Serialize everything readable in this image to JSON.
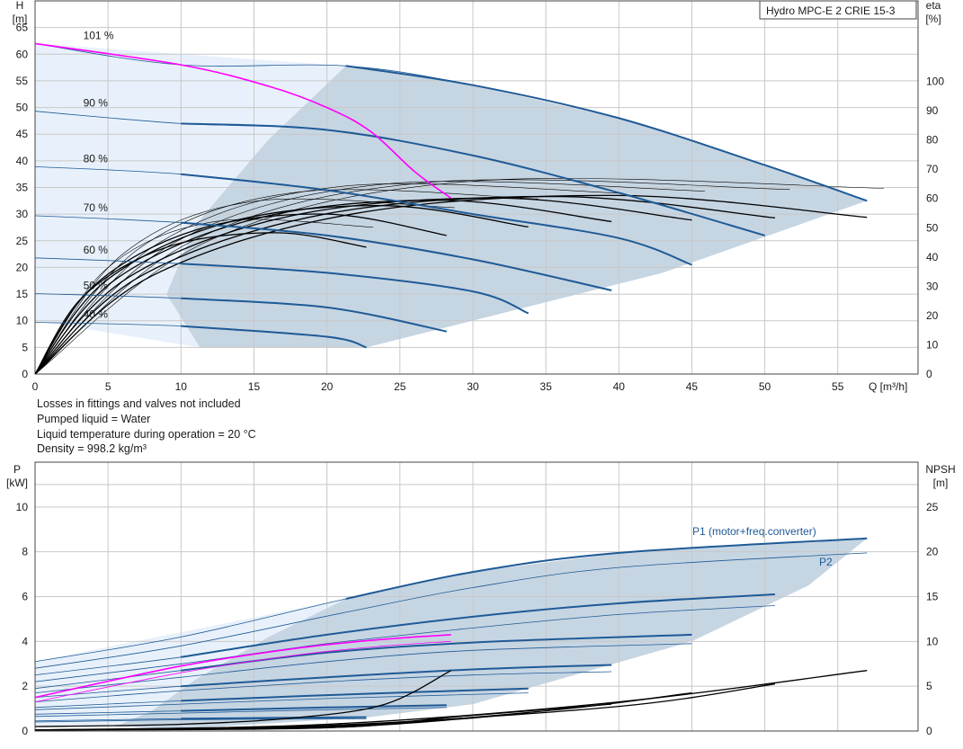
{
  "title": "Hydro MPC-E 2 CRIE 15-3",
  "notes": [
    "Losses in fittings and valves not included",
    "Pumped liquid = Water",
    "Liquid temperature during operation = 20 °C",
    "Density = 998.2 kg/m³"
  ],
  "colors": {
    "envelope_fill": "#c6d5e2",
    "light_zone_fill": "#e8f1fb",
    "curve_blue": "#1f5a96",
    "system_curve": "#ff00ff",
    "efficiency_curve": "#000000",
    "grid": "#c8c8c8"
  },
  "chart_data": [
    {
      "type": "line",
      "xlabel": "Q [m³/h]",
      "ylabel_top": "H",
      "ylabel_unit": "[m]",
      "y2label_top": "eta",
      "y2label_unit": "[%]",
      "xlim": [
        0,
        60.5
      ],
      "ylim": [
        0,
        70
      ],
      "y2lim": [
        0,
        127.5
      ],
      "xticks": [
        0,
        5,
        10,
        15,
        20,
        25,
        30,
        35,
        40,
        45,
        50,
        55
      ],
      "yticks": [
        0,
        5,
        10,
        15,
        20,
        25,
        30,
        35,
        40,
        45,
        50,
        55,
        60,
        65
      ],
      "y2ticks": [
        0,
        10,
        20,
        30,
        40,
        50,
        60,
        70,
        80,
        90,
        100
      ],
      "grid": true,
      "envelope": {
        "upper": [
          [
            21.3,
            57.8
          ],
          [
            30,
            54.2
          ],
          [
            40,
            48
          ],
          [
            50,
            39.2
          ],
          [
            57,
            32.5
          ]
        ],
        "right": [
          [
            57,
            32.5
          ],
          [
            43,
            19
          ],
          [
            22.7,
            5
          ]
        ],
        "left_boundary": [
          [
            21.3,
            57.8
          ],
          [
            16,
            44
          ],
          [
            11,
            28
          ],
          [
            9,
            15
          ],
          [
            11.3,
            5
          ]
        ],
        "bottom": [
          [
            11.3,
            5
          ],
          [
            22.7,
            5
          ]
        ]
      },
      "light_zone": [
        [
          0,
          62
        ],
        [
          21.3,
          57.8
        ],
        [
          16,
          44
        ],
        [
          11,
          28
        ],
        [
          9,
          15
        ],
        [
          11.3,
          5
        ],
        [
          0,
          10
        ]
      ],
      "speed_curves": [
        {
          "name": "101 %",
          "points": [
            [
              0,
              62
            ],
            [
              10,
              58
            ],
            [
              21.3,
              57.8
            ],
            [
              30,
              54.2
            ],
            [
              40,
              48
            ],
            [
              50,
              39.2
            ],
            [
              57,
              32.5
            ]
          ]
        },
        {
          "name": "90 %",
          "points": [
            [
              0,
              49.3
            ],
            [
              10,
              47
            ],
            [
              20,
              45.8
            ],
            [
              30,
              41
            ],
            [
              40,
              34
            ],
            [
              50,
              26
            ]
          ]
        },
        {
          "name": "80 %",
          "points": [
            [
              0,
              38.9
            ],
            [
              10,
              37.5
            ],
            [
              20,
              34.5
            ],
            [
              30,
              30
            ],
            [
              40,
              25.5
            ],
            [
              45,
              20.5
            ]
          ]
        },
        {
          "name": "70 %",
          "points": [
            [
              0,
              29.7
            ],
            [
              10,
              28.4
            ],
            [
              20,
              26
            ],
            [
              30,
              21.5
            ],
            [
              39.5,
              15.7
            ]
          ]
        },
        {
          "name": "60 %",
          "points": [
            [
              0,
              21.8
            ],
            [
              10,
              20.7
            ],
            [
              20,
              19
            ],
            [
              30,
              15.5
            ],
            [
              33.8,
              11.4
            ]
          ]
        },
        {
          "name": "50 %",
          "points": [
            [
              0,
              15.1
            ],
            [
              10,
              14.2
            ],
            [
              20,
              12.5
            ],
            [
              28.2,
              8
            ]
          ]
        },
        {
          "name": "40 %",
          "points": [
            [
              0,
              9.7
            ],
            [
              10,
              9
            ],
            [
              20,
              7
            ],
            [
              22.7,
              5
            ]
          ]
        }
      ],
      "system_curve": [
        [
          0,
          62
        ],
        [
          10,
          58
        ],
        [
          16,
          54
        ],
        [
          20,
          50
        ],
        [
          23,
          45.5
        ],
        [
          26,
          38
        ],
        [
          28.5,
          33
        ]
      ],
      "efficiency_curves": [
        {
          "end": [
            22.7,
            23.8
          ],
          "peak": [
            16.5,
            26.5
          ]
        },
        {
          "end": [
            28.2,
            26
          ],
          "peak": [
            20,
            30
          ]
        },
        {
          "end": [
            33.8,
            27.6
          ],
          "peak": [
            24,
            31.6
          ]
        },
        {
          "end": [
            39.5,
            28.6
          ],
          "peak": [
            28,
            32.6
          ]
        },
        {
          "end": [
            45,
            28.9
          ],
          "peak": [
            32,
            33
          ]
        },
        {
          "end": [
            50.7,
            29.3
          ],
          "peak": [
            36,
            33.3
          ]
        },
        {
          "end": [
            57,
            29.4
          ],
          "peak": [
            40,
            33.5
          ]
        }
      ]
    },
    {
      "type": "line",
      "ylabel_top": "P",
      "ylabel_unit": "[kW]",
      "y2label_top": "NPSH",
      "y2label_unit": "[m]",
      "xlim": [
        0,
        60.5
      ],
      "ylim": [
        0,
        12
      ],
      "y2lim": [
        0,
        30
      ],
      "yticks": [
        0,
        2,
        4,
        6,
        8,
        10
      ],
      "y2ticks": [
        0,
        5,
        10,
        15,
        20,
        25
      ],
      "grid": true,
      "series_labels": {
        "p1": "P1 (motor+freq.converter)",
        "p2": "P2"
      },
      "p1_curves": [
        [
          [
            0,
            3.1
          ],
          [
            10,
            4.2
          ],
          [
            21.3,
            5.9
          ],
          [
            30,
            7.1
          ],
          [
            40,
            7.95
          ],
          [
            57,
            8.6
          ]
        ],
        [
          [
            0,
            2.5
          ],
          [
            10,
            3.3
          ],
          [
            20,
            4.3
          ],
          [
            30,
            5.1
          ],
          [
            40,
            5.7
          ],
          [
            50.7,
            6.1
          ]
        ],
        [
          [
            0,
            1.9
          ],
          [
            10,
            2.7
          ],
          [
            20,
            3.5
          ],
          [
            30,
            3.95
          ],
          [
            45,
            4.3
          ]
        ],
        [
          [
            0,
            1.5
          ],
          [
            10,
            2.0
          ],
          [
            20,
            2.4
          ],
          [
            30,
            2.75
          ],
          [
            39.5,
            2.95
          ]
        ],
        [
          [
            0,
            1.05
          ],
          [
            10,
            1.35
          ],
          [
            20,
            1.6
          ],
          [
            33.8,
            1.9
          ]
        ],
        [
          [
            0,
            0.75
          ],
          [
            10,
            0.9
          ],
          [
            20,
            1.05
          ],
          [
            28.2,
            1.15
          ]
        ],
        [
          [
            0,
            0.45
          ],
          [
            10,
            0.55
          ],
          [
            22.7,
            0.62
          ]
        ]
      ],
      "p2_curves": [
        [
          [
            0,
            2.8
          ],
          [
            10,
            3.8
          ],
          [
            21.3,
            5.3
          ],
          [
            30,
            6.4
          ],
          [
            40,
            7.3
          ],
          [
            57,
            7.95
          ]
        ],
        [
          [
            0,
            2.2
          ],
          [
            10,
            3.0
          ],
          [
            20,
            3.9
          ],
          [
            30,
            4.6
          ],
          [
            40,
            5.2
          ],
          [
            50.7,
            5.6
          ]
        ],
        [
          [
            0,
            1.7
          ],
          [
            10,
            2.4
          ],
          [
            20,
            3.1
          ],
          [
            30,
            3.6
          ],
          [
            45,
            3.9
          ]
        ],
        [
          [
            0,
            1.3
          ],
          [
            10,
            1.8
          ],
          [
            20,
            2.2
          ],
          [
            30,
            2.5
          ],
          [
            39.5,
            2.65
          ]
        ],
        [
          [
            0,
            0.95
          ],
          [
            10,
            1.2
          ],
          [
            20,
            1.45
          ],
          [
            33.8,
            1.7
          ]
        ],
        [
          [
            0,
            0.65
          ],
          [
            10,
            0.8
          ],
          [
            20,
            0.95
          ],
          [
            28.2,
            1.05
          ]
        ],
        [
          [
            0,
            0.4
          ],
          [
            10,
            0.5
          ],
          [
            22.7,
            0.55
          ]
        ]
      ],
      "system_p1": [
        [
          0,
          1.5
        ],
        [
          10,
          2.9
        ],
        [
          18,
          3.7
        ],
        [
          24,
          4.1
        ],
        [
          28.5,
          4.3
        ]
      ],
      "system_p2": [
        [
          0,
          1.3
        ],
        [
          10,
          2.6
        ],
        [
          18,
          3.4
        ],
        [
          24,
          3.8
        ],
        [
          28.5,
          4.0
        ]
      ],
      "npsh_curves": [
        [
          [
            0,
            0.2
          ],
          [
            10,
            0.3
          ],
          [
            18,
            0.6
          ],
          [
            24,
            1.2
          ],
          [
            28.5,
            2.7
          ]
        ],
        [
          [
            0,
            0.05
          ],
          [
            20,
            0.3
          ],
          [
            40,
            1.3
          ],
          [
            57,
            2.7
          ]
        ],
        [
          [
            0,
            0.05
          ],
          [
            20,
            0.25
          ],
          [
            40,
            1.1
          ],
          [
            50.7,
            2.1
          ]
        ],
        [
          [
            0,
            0.05
          ],
          [
            20,
            0.2
          ],
          [
            35,
            0.9
          ],
          [
            45,
            1.7
          ]
        ],
        [
          [
            0,
            0.05
          ],
          [
            20,
            0.2
          ],
          [
            30,
            0.7
          ],
          [
            39.5,
            1.2
          ]
        ],
        [
          [
            0,
            0.05
          ],
          [
            20,
            0.15
          ],
          [
            33.8,
            0.8
          ]
        ],
        [
          [
            0,
            0.05
          ],
          [
            20,
            0.15
          ],
          [
            28.2,
            0.6
          ]
        ]
      ],
      "envelope": {
        "upper_p1": [
          [
            21.3,
            5.9
          ],
          [
            30,
            7.1
          ],
          [
            40,
            7.95
          ],
          [
            57,
            8.6
          ]
        ],
        "right": [
          [
            57,
            8.6
          ],
          [
            53,
            6.5
          ],
          [
            45,
            4.0
          ],
          [
            30,
            1.2
          ],
          [
            22.7,
            0.6
          ],
          [
            10,
            0.1
          ]
        ],
        "left": [
          [
            21.3,
            5.9
          ],
          [
            16,
            4.2
          ],
          [
            11,
            2.3
          ],
          [
            8,
            0.9
          ],
          [
            5.5,
            0.2
          ]
        ]
      },
      "light_zone": [
        [
          0,
          3.1
        ],
        [
          21.3,
          5.9
        ],
        [
          16,
          4.2
        ],
        [
          11,
          2.3
        ],
        [
          8,
          0.9
        ],
        [
          5.5,
          0.2
        ],
        [
          0,
          0.2
        ]
      ]
    }
  ]
}
